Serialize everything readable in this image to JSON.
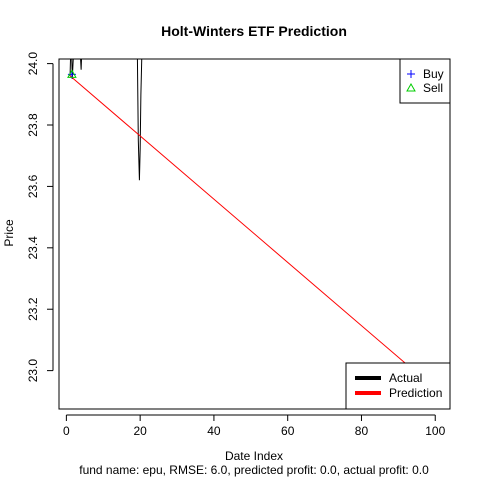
{
  "chart_data": {
    "type": "line",
    "title": "Holt-Winters ETF Prediction",
    "xlabel": "Date Index",
    "ylabel": "Price",
    "caption": "fund name: epu, RMSE: 6.0, predicted profit: 0.0, actual profit: 0.0",
    "xlim": [
      -2,
      104
    ],
    "ylim": [
      22.875,
      24.015
    ],
    "x_ticks": [
      0,
      20,
      40,
      60,
      80,
      100
    ],
    "y_ticks": [
      23.0,
      23.2,
      23.4,
      23.6,
      23.8,
      24.0
    ],
    "x_tick_labels": [
      "0",
      "20",
      "40",
      "60",
      "80",
      "100"
    ],
    "y_tick_labels": [
      "23.0",
      "23.2",
      "23.4",
      "23.6",
      "23.8",
      "24.0"
    ],
    "grid": false,
    "legend_top": {
      "position": "top-right",
      "entries": [
        {
          "label": "Buy",
          "marker": "plus",
          "color": "#0000ff"
        },
        {
          "label": "Sell",
          "marker": "triangle",
          "color": "#00cd00"
        }
      ]
    },
    "legend_bottom": {
      "position": "bottom-right",
      "entries": [
        {
          "label": "Actual",
          "color": "#000000"
        },
        {
          "label": "Prediction",
          "color": "#ff0000"
        }
      ]
    },
    "series": [
      {
        "name": "Actual",
        "color": "#000000",
        "x": [
          1,
          1.3,
          1.6,
          2,
          2.5,
          3,
          3.5,
          4,
          4.2,
          4.5,
          19,
          19.5,
          19.8,
          20,
          20.2,
          20.5,
          20.8
        ],
        "y": [
          23.96,
          24.1,
          23.95,
          24.05,
          24.2,
          24.3,
          24.1,
          23.98,
          24.05,
          24.2,
          24.3,
          23.75,
          23.62,
          23.72,
          23.9,
          24.05,
          24.2
        ]
      },
      {
        "name": "Prediction",
        "color": "#ff0000",
        "x": [
          1,
          102
        ],
        "y": [
          23.96,
          22.92
        ]
      }
    ],
    "markers": {
      "buy": [
        {
          "x": 1.5,
          "y": 23.965
        }
      ],
      "sell": [
        {
          "x": 1.5,
          "y": 23.965
        }
      ]
    }
  }
}
